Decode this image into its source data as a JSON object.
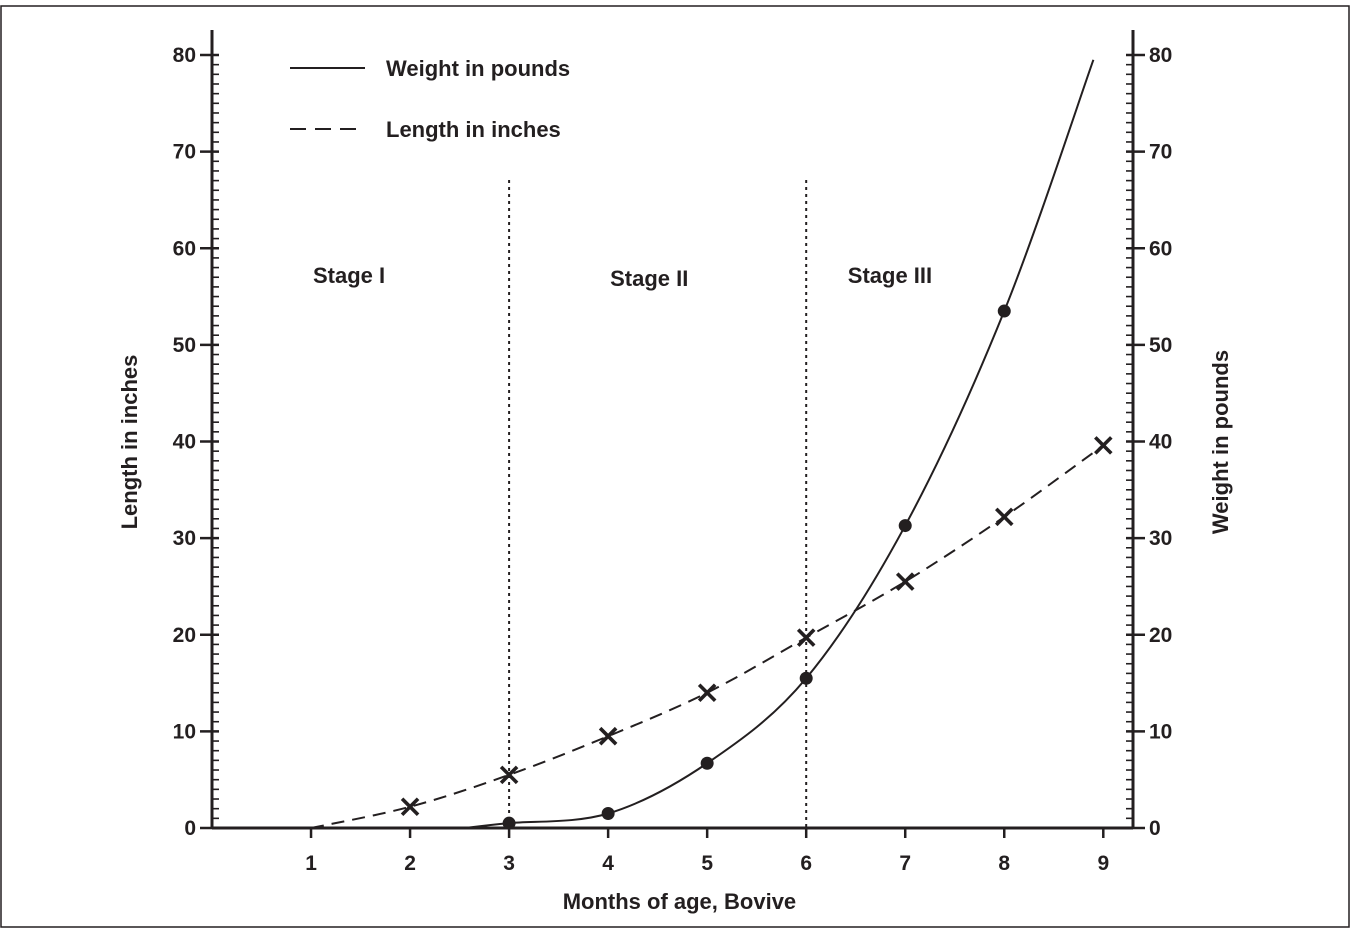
{
  "chart_data": {
    "type": "line",
    "title": "",
    "xlabel": "Months of age, Bovive",
    "ylabel_left": "Length in inches",
    "ylabel_right": "Weight in pounds",
    "xlim": [
      0,
      9.3
    ],
    "ylim": [
      0,
      80
    ],
    "x_ticks": [
      "1",
      "2",
      "3",
      "4",
      "5",
      "6",
      "7",
      "8",
      "9"
    ],
    "y_ticks": [
      "0",
      "10",
      "20",
      "30",
      "40",
      "50",
      "60",
      "70",
      "80"
    ],
    "grid": false,
    "legend_position": "top-left",
    "series": [
      {
        "name": "Weight in pounds",
        "style": "solid",
        "marker": "dot",
        "axis": "right",
        "curve_start": [
          2.55,
          0
        ],
        "curve_end": [
          8.9,
          79.5
        ],
        "points": [
          {
            "x": 3,
            "y": 0.5
          },
          {
            "x": 4,
            "y": 1.5
          },
          {
            "x": 5,
            "y": 6.7
          },
          {
            "x": 6,
            "y": 15.5
          },
          {
            "x": 7,
            "y": 31.3
          },
          {
            "x": 8,
            "y": 53.5
          }
        ]
      },
      {
        "name": "Length in inches",
        "style": "dashed",
        "marker": "X",
        "axis": "left",
        "curve_start": [
          1,
          0
        ],
        "points": [
          {
            "x": 2,
            "y": 2.2
          },
          {
            "x": 3,
            "y": 5.5
          },
          {
            "x": 4,
            "y": 9.5
          },
          {
            "x": 5,
            "y": 14.0
          },
          {
            "x": 6,
            "y": 19.7
          },
          {
            "x": 7,
            "y": 25.5
          },
          {
            "x": 8,
            "y": 32.2
          },
          {
            "x": 9,
            "y": 39.6
          }
        ]
      }
    ],
    "stage_dividers": [
      3,
      6
    ],
    "annotations": [
      {
        "text": "Stage I",
        "x": 0.5,
        "y": 56.4
      },
      {
        "text": "Stage II",
        "x": 3.5,
        "y": 56.1
      },
      {
        "text": "Stage III",
        "x": 5.9,
        "y": 56.4
      }
    ],
    "colors": {
      "ink": "#231f20",
      "background": "#ffffff"
    }
  }
}
